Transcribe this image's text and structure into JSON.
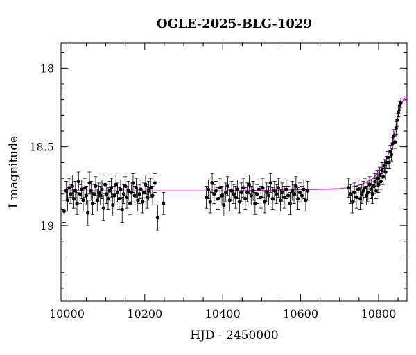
{
  "chart_data": {
    "type": "scatter",
    "title": "OGLE-2025-BLG-1029",
    "xlabel": "HJD - 2450000",
    "ylabel": "I magnitude",
    "xlim": [
      9985,
      10873
    ],
    "ylim": [
      19.48,
      17.84
    ],
    "y_inverted": true,
    "grid": false,
    "x_major_ticks": [
      10000,
      10200,
      10400,
      10600,
      10800
    ],
    "x_tick_labels": [
      "10000",
      "10200",
      "10400",
      "10600",
      "10800"
    ],
    "y_major_ticks": [
      18,
      18.5,
      19
    ],
    "y_tick_labels": [
      "18",
      "18.5",
      "19"
    ],
    "colors": {
      "points": "#000000",
      "model": "#ff00ff",
      "frame": "#000000"
    },
    "series": [
      {
        "kind": "errorbar-points",
        "x": [
          9993,
          9998,
          10002,
          10006,
          10010,
          10014,
          10018,
          10022,
          10026,
          10030,
          10034,
          10038,
          10042,
          10046,
          10050,
          10054,
          10058,
          10062,
          10066,
          10070,
          10074,
          10078,
          10082,
          10086,
          10090,
          10094,
          10098,
          10102,
          10106,
          10110,
          10114,
          10118,
          10122,
          10126,
          10130,
          10134,
          10138,
          10142,
          10146,
          10150,
          10154,
          10158,
          10162,
          10166,
          10170,
          10174,
          10178,
          10182,
          10186,
          10190,
          10194,
          10198,
          10202,
          10206,
          10210,
          10215,
          10220,
          10226,
          10233,
          10248,
          10358,
          10363,
          10368,
          10373,
          10378,
          10383,
          10388,
          10393,
          10398,
          10403,
          10408,
          10413,
          10418,
          10423,
          10428,
          10433,
          10438,
          10443,
          10448,
          10453,
          10458,
          10463,
          10468,
          10473,
          10478,
          10483,
          10488,
          10493,
          10498,
          10503,
          10508,
          10513,
          10518,
          10523,
          10528,
          10533,
          10538,
          10543,
          10548,
          10553,
          10558,
          10563,
          10568,
          10573,
          10578,
          10583,
          10588,
          10593,
          10598,
          10603,
          10608,
          10613,
          10618,
          10723,
          10728,
          10733,
          10738,
          10743,
          10748,
          10753,
          10757,
          10761,
          10765,
          10769,
          10773,
          10777,
          10781,
          10785,
          10788,
          10791,
          10794,
          10797,
          10800,
          10803,
          10806,
          10809,
          10812,
          10815,
          10818,
          10821,
          10824,
          10827,
          10830,
          10833,
          10836,
          10839,
          10842,
          10845,
          10848,
          10851,
          10854,
          10857
        ],
        "y": [
          18.91,
          18.78,
          18.84,
          18.76,
          18.8,
          18.75,
          18.83,
          18.78,
          18.86,
          18.72,
          18.8,
          18.77,
          18.84,
          18.76,
          18.81,
          18.92,
          18.73,
          18.78,
          18.86,
          18.8,
          18.75,
          18.84,
          18.79,
          18.81,
          18.77,
          18.89,
          18.74,
          18.8,
          18.83,
          18.78,
          18.76,
          18.87,
          18.81,
          18.74,
          18.79,
          18.83,
          18.77,
          18.9,
          18.8,
          18.75,
          18.82,
          18.78,
          18.86,
          18.79,
          18.73,
          18.81,
          18.76,
          18.84,
          18.8,
          18.77,
          18.85,
          18.79,
          18.74,
          18.82,
          18.78,
          18.76,
          18.81,
          18.73,
          18.95,
          18.86,
          18.82,
          18.77,
          18.85,
          18.73,
          18.8,
          18.78,
          18.83,
          18.76,
          18.81,
          18.87,
          18.79,
          18.75,
          18.84,
          18.78,
          18.8,
          18.82,
          18.77,
          18.85,
          18.79,
          18.76,
          18.83,
          18.79,
          18.74,
          18.81,
          18.78,
          18.86,
          18.8,
          18.77,
          18.82,
          18.76,
          18.85,
          18.79,
          18.81,
          18.73,
          18.83,
          18.78,
          18.8,
          18.76,
          18.84,
          18.79,
          18.82,
          18.77,
          18.81,
          18.86,
          18.78,
          18.8,
          18.75,
          18.83,
          18.79,
          18.81,
          18.77,
          18.84,
          18.78,
          18.76,
          18.8,
          18.85,
          18.79,
          18.82,
          18.77,
          18.83,
          18.8,
          18.78,
          18.76,
          18.81,
          18.79,
          18.74,
          18.77,
          18.8,
          18.75,
          18.72,
          18.78,
          18.7,
          18.74,
          18.68,
          18.72,
          18.65,
          18.69,
          18.62,
          18.66,
          18.6,
          18.57,
          18.6,
          18.53,
          18.55,
          18.48,
          18.43,
          18.47,
          18.38,
          18.33,
          18.28,
          18.24,
          18.22
        ],
        "err": [
          0.07,
          0.06,
          0.07,
          0.06,
          0.06,
          0.07,
          0.06,
          0.06,
          0.07,
          0.06,
          0.06,
          0.06,
          0.07,
          0.06,
          0.06,
          0.08,
          0.07,
          0.06,
          0.07,
          0.06,
          0.06,
          0.07,
          0.06,
          0.06,
          0.06,
          0.08,
          0.06,
          0.06,
          0.07,
          0.06,
          0.06,
          0.07,
          0.06,
          0.06,
          0.06,
          0.07,
          0.06,
          0.08,
          0.06,
          0.06,
          0.07,
          0.06,
          0.07,
          0.06,
          0.06,
          0.06,
          0.06,
          0.07,
          0.06,
          0.06,
          0.07,
          0.06,
          0.06,
          0.07,
          0.06,
          0.06,
          0.06,
          0.06,
          0.08,
          0.07,
          0.07,
          0.06,
          0.07,
          0.06,
          0.06,
          0.06,
          0.07,
          0.06,
          0.06,
          0.07,
          0.06,
          0.06,
          0.07,
          0.06,
          0.06,
          0.07,
          0.06,
          0.07,
          0.06,
          0.06,
          0.07,
          0.06,
          0.06,
          0.06,
          0.06,
          0.07,
          0.06,
          0.06,
          0.07,
          0.06,
          0.07,
          0.06,
          0.06,
          0.06,
          0.07,
          0.06,
          0.06,
          0.06,
          0.07,
          0.06,
          0.07,
          0.06,
          0.06,
          0.07,
          0.06,
          0.06,
          0.06,
          0.07,
          0.06,
          0.06,
          0.06,
          0.07,
          0.06,
          0.06,
          0.06,
          0.07,
          0.06,
          0.07,
          0.06,
          0.07,
          0.06,
          0.06,
          0.06,
          0.06,
          0.06,
          0.05,
          0.06,
          0.06,
          0.05,
          0.05,
          0.05,
          0.05,
          0.05,
          0.05,
          0.05,
          0.05,
          0.05,
          0.04,
          0.05,
          0.04,
          0.04,
          0.04,
          0.04,
          0.04,
          0.04,
          0.04,
          0.04,
          0.04,
          0.04,
          0.03,
          0.03,
          0.03
        ]
      },
      {
        "kind": "model-curve",
        "x": [
          9985,
          10100,
          10250,
          10400,
          10550,
          10650,
          10700,
          10720,
          10740,
          10760,
          10780,
          10790,
          10800,
          10810,
          10820,
          10825,
          10830,
          10835,
          10840,
          10845,
          10850,
          10855,
          10860,
          10865,
          10870,
          10873
        ],
        "y": [
          18.78,
          18.78,
          18.78,
          18.78,
          18.775,
          18.77,
          18.765,
          18.76,
          18.75,
          18.735,
          18.71,
          18.69,
          18.665,
          18.63,
          18.58,
          18.55,
          18.51,
          18.47,
          18.42,
          18.37,
          18.31,
          18.26,
          18.22,
          18.195,
          18.19,
          18.19
        ]
      }
    ]
  }
}
